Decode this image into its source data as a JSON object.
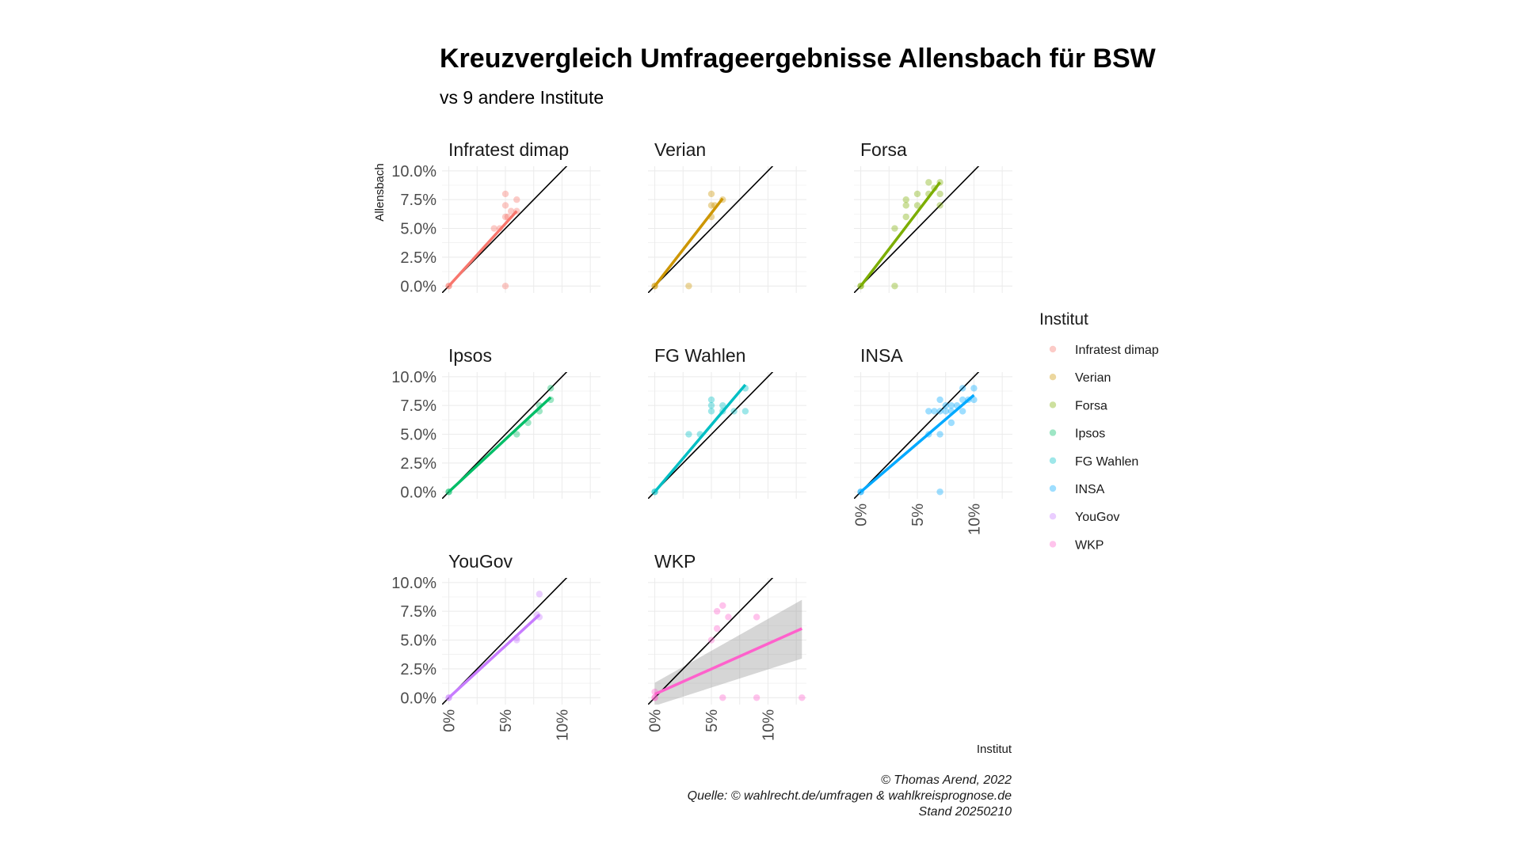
{
  "header": {
    "title": "Kreuzvergleich Umfrageergebnisse Allensbach für BSW",
    "subtitle": "vs 9 andere Institute"
  },
  "axes": {
    "y_title": "Allensbach",
    "x_title": "Institut",
    "y_ticks": [
      "0.0%",
      "2.5%",
      "5.0%",
      "7.5%",
      "10.0%"
    ],
    "x_ticks": [
      "0%",
      "5%",
      "10%"
    ]
  },
  "legend": {
    "title": "Institut",
    "items": [
      "Infratest dimap",
      "Verian",
      "Forsa",
      "Ipsos",
      "FG Wahlen",
      "INSA",
      "YouGov",
      "WKP"
    ]
  },
  "caption": {
    "line1": "© Thomas Arend, 2022",
    "line2": "Quelle: © wahlrecht.de/umfragen & wahlkreisprognose.de",
    "line3": "Stand 20250210"
  },
  "chart_data": {
    "type": "scatter",
    "xlim": [
      0,
      13
    ],
    "ylim": [
      0,
      10
    ],
    "y_label": "Allensbach",
    "x_label": "Institut",
    "reference_line": "y = x",
    "panels": [
      {
        "name": "Infratest dimap",
        "color": "#F8766D",
        "points": [
          [
            0,
            0
          ],
          [
            0,
            0
          ],
          [
            5,
            0
          ],
          [
            5,
            8
          ],
          [
            5,
            7
          ],
          [
            5,
            6
          ],
          [
            4,
            5
          ],
          [
            5.5,
            6.5
          ],
          [
            6,
            7.5
          ],
          [
            6,
            6.5
          ],
          [
            4.5,
            5
          ],
          [
            5.2,
            6
          ]
        ],
        "fit": {
          "x": [
            0,
            6
          ],
          "y": [
            0,
            6.5
          ]
        }
      },
      {
        "name": "Verian",
        "color": "#CD9600",
        "points": [
          [
            0,
            0
          ],
          [
            0,
            0
          ],
          [
            3,
            0
          ],
          [
            5,
            8
          ],
          [
            5,
            7
          ],
          [
            5,
            6
          ],
          [
            5.3,
            7
          ],
          [
            6,
            7.5
          ]
        ],
        "fit": {
          "x": [
            0,
            6
          ],
          "y": [
            0,
            7.6
          ]
        }
      },
      {
        "name": "Forsa",
        "color": "#7CAE00",
        "points": [
          [
            0,
            0
          ],
          [
            0,
            0
          ],
          [
            3,
            0
          ],
          [
            3,
            5
          ],
          [
            4,
            6
          ],
          [
            4,
            7.5
          ],
          [
            4,
            7
          ],
          [
            5,
            8
          ],
          [
            5,
            7
          ],
          [
            6,
            9
          ],
          [
            6,
            8
          ],
          [
            7,
            9
          ],
          [
            7,
            8
          ],
          [
            7,
            7
          ],
          [
            6.5,
            8.5
          ]
        ],
        "fit": {
          "x": [
            0,
            7
          ],
          "y": [
            0,
            9
          ]
        }
      },
      {
        "name": "Ipsos",
        "color": "#00BE67",
        "points": [
          [
            0,
            0
          ],
          [
            0,
            0
          ],
          [
            6,
            5
          ],
          [
            8,
            7
          ],
          [
            8,
            7.5
          ],
          [
            9,
            9
          ],
          [
            9,
            8
          ],
          [
            7,
            6
          ]
        ],
        "fit": {
          "x": [
            0,
            9
          ],
          "y": [
            0,
            8.2
          ]
        }
      },
      {
        "name": "FG Wahlen",
        "color": "#00BFC4",
        "points": [
          [
            0,
            0
          ],
          [
            0,
            0
          ],
          [
            3,
            5
          ],
          [
            4,
            5
          ],
          [
            5,
            7
          ],
          [
            5,
            7.5
          ],
          [
            5,
            8
          ],
          [
            6,
            7
          ],
          [
            7,
            7
          ],
          [
            8,
            7
          ],
          [
            8,
            9
          ],
          [
            6,
            7.5
          ]
        ],
        "fit": {
          "x": [
            0,
            8
          ],
          "y": [
            0,
            9.3
          ]
        }
      },
      {
        "name": "INSA",
        "color": "#00A9FF",
        "points": [
          [
            0,
            0
          ],
          [
            0,
            0
          ],
          [
            7,
            0
          ],
          [
            6,
            5
          ],
          [
            7,
            5
          ],
          [
            7,
            8
          ],
          [
            8,
            6
          ],
          [
            6,
            7
          ],
          [
            6.5,
            7
          ],
          [
            7,
            7
          ],
          [
            7.5,
            7
          ],
          [
            8,
            7
          ],
          [
            8,
            7.5
          ],
          [
            9,
            7
          ],
          [
            9,
            8
          ],
          [
            9,
            9
          ],
          [
            10,
            9
          ],
          [
            10,
            8
          ],
          [
            9.5,
            8
          ],
          [
            8.5,
            7.5
          ],
          [
            7.5,
            7.5
          ]
        ],
        "fit": {
          "x": [
            0,
            10
          ],
          "y": [
            0,
            8.4
          ]
        }
      },
      {
        "name": "YouGov",
        "color": "#C77CFF",
        "points": [
          [
            0,
            0
          ],
          [
            0,
            0
          ],
          [
            6,
            5
          ],
          [
            6,
            5.2
          ],
          [
            8,
            7
          ],
          [
            8,
            9
          ],
          [
            7.8,
            7.2
          ]
        ],
        "fit": {
          "x": [
            0,
            8
          ],
          "y": [
            0,
            7.2
          ]
        }
      },
      {
        "name": "WKP",
        "color": "#FF61CC",
        "points": [
          [
            0,
            0
          ],
          [
            0,
            0
          ],
          [
            0,
            0.5
          ],
          [
            6,
            0
          ],
          [
            9,
            0
          ],
          [
            13,
            0
          ],
          [
            5,
            5
          ],
          [
            5.5,
            6
          ],
          [
            5.5,
            7.5
          ],
          [
            6,
            8
          ],
          [
            6.5,
            7
          ],
          [
            9,
            7
          ]
        ],
        "fit": {
          "x": [
            0,
            13
          ],
          "y": [
            0.3,
            6
          ]
        },
        "ci": {
          "x": [
            0,
            13
          ],
          "upper": [
            1.3,
            8.5
          ],
          "lower": [
            -0.7,
            3.4
          ]
        }
      }
    ]
  }
}
